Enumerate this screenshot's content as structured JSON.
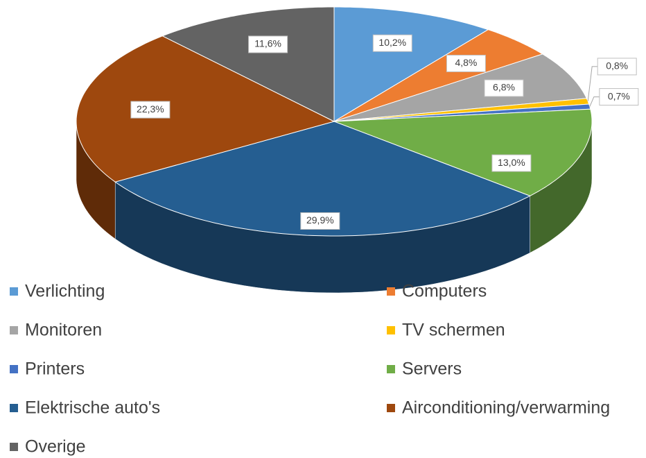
{
  "chart_data": {
    "type": "pie3d",
    "categories": [
      "Verlichting",
      "Computers",
      "Monitoren",
      "TV schermen",
      "Printers",
      "Servers",
      "Elektrische auto's",
      "Airconditioning/verwarming",
      "Overige"
    ],
    "values": [
      10.2,
      4.8,
      6.8,
      0.8,
      0.7,
      13.0,
      29.9,
      22.3,
      11.6
    ],
    "value_labels": [
      "10,2%",
      "4,8%",
      "6,8%",
      "0,8%",
      "0,7%",
      "13,0%",
      "29,9%",
      "22,3%",
      "11,6%"
    ],
    "colors": [
      "#5b9bd5",
      "#ed7d31",
      "#a5a5a5",
      "#ffc000",
      "#4472c4",
      "#70ad47",
      "#255e91",
      "#9e480e",
      "#636363"
    ],
    "legend": "bottom"
  }
}
